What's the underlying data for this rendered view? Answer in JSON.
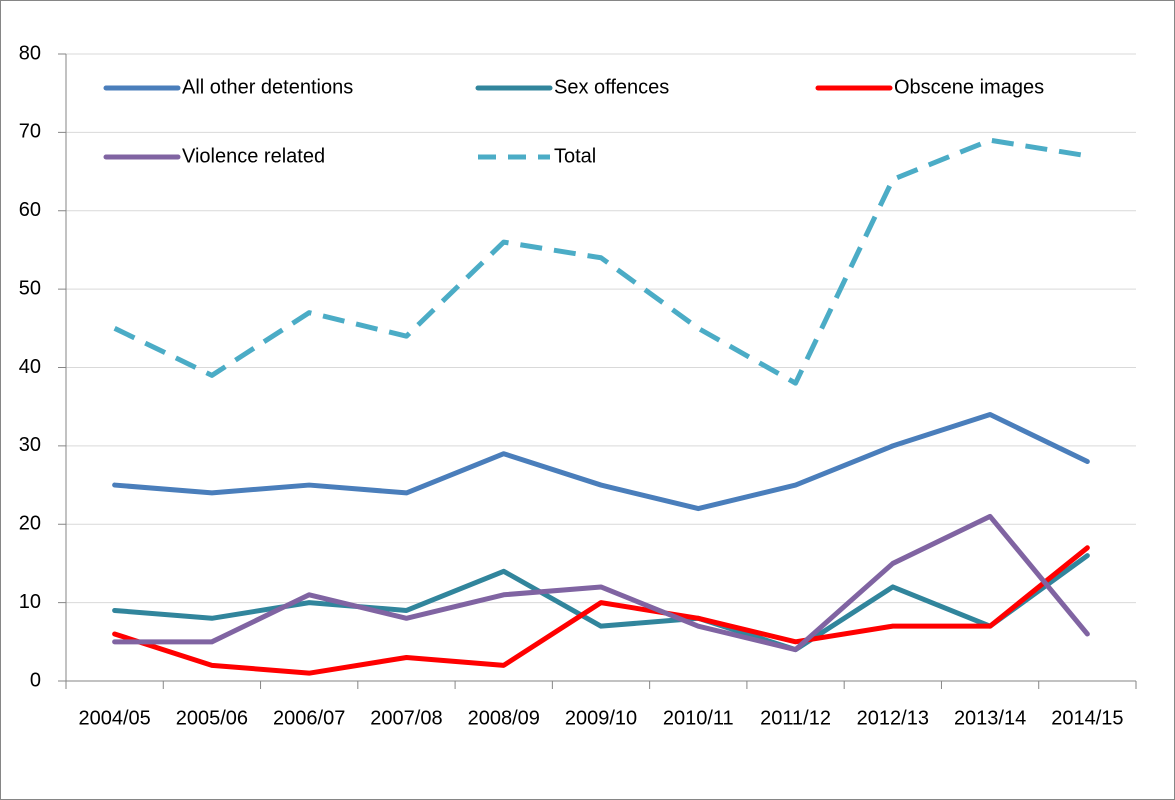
{
  "chart_data": {
    "type": "line",
    "categories": [
      "2004/05",
      "2005/06",
      "2006/07",
      "2007/08",
      "2008/09",
      "2009/10",
      "2010/11",
      "2011/12",
      "2012/13",
      "2013/14",
      "2014/15"
    ],
    "series": [
      {
        "name": "All other detentions",
        "color": "#4a7ebb",
        "values": [
          25,
          24,
          25,
          24,
          29,
          25,
          22,
          25,
          30,
          34,
          28
        ]
      },
      {
        "name": "Sex offences",
        "color": "#31859c",
        "values": [
          9,
          8,
          10,
          9,
          14,
          7,
          8,
          4,
          12,
          7,
          16
        ]
      },
      {
        "name": "Obscene images",
        "color": "#ff0000",
        "values": [
          6,
          2,
          1,
          3,
          2,
          10,
          8,
          5,
          7,
          7,
          17
        ]
      },
      {
        "name": "Violence related",
        "color": "#8064a2",
        "values": [
          5,
          5,
          11,
          8,
          11,
          12,
          7,
          4,
          15,
          21,
          6
        ]
      },
      {
        "name": "Total",
        "color": "#4bacc6",
        "dashed": true,
        "values": [
          45,
          39,
          47,
          44,
          56,
          54,
          45,
          38,
          64,
          69,
          67
        ]
      }
    ],
    "ylim": [
      0,
      80
    ],
    "yticks": [
      0,
      10,
      20,
      30,
      40,
      50,
      60,
      70,
      80
    ],
    "grid": true,
    "legend": "top"
  }
}
